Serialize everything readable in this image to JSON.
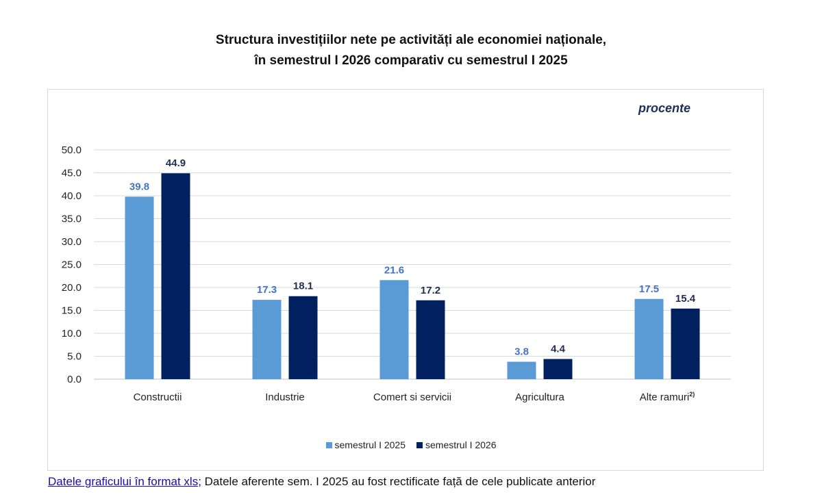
{
  "title": {
    "line1": "Structura investițiilor nete pe activități ale economiei naționale,",
    "line2": "în semestrul I 2026 comparativ cu semestrul I 2025"
  },
  "unit": "procente",
  "footer": {
    "link": "Datele graficului în format xls",
    "note": "; Datele aferente sem. I 2025 au fost rectificate față de cele publicate anterior"
  },
  "colors": {
    "series1": "#5b9bd5",
    "series2": "#002060",
    "label1": "#4472c4",
    "label2": "#1f2d4f"
  },
  "chart_data": {
    "type": "bar",
    "categories": [
      "Constructii",
      "Industrie",
      "Comert si servicii",
      "Agricultura",
      "Alte ramuri"
    ],
    "category_superscripts": [
      "",
      "",
      "",
      "",
      "2)"
    ],
    "series": [
      {
        "name": "semestrul I 2025",
        "values": [
          39.8,
          17.3,
          21.6,
          3.8,
          17.5
        ]
      },
      {
        "name": "semestrul I 2026",
        "values": [
          44.9,
          18.1,
          17.2,
          4.4,
          15.4
        ]
      }
    ],
    "ylim": [
      0,
      50
    ],
    "yticks": [
      "0.0",
      "5.0",
      "10.0",
      "15.0",
      "20.0",
      "25.0",
      "30.0",
      "35.0",
      "40.0",
      "45.0",
      "50.0"
    ],
    "grid": true,
    "legend": "bottom",
    "data_labels": true
  }
}
